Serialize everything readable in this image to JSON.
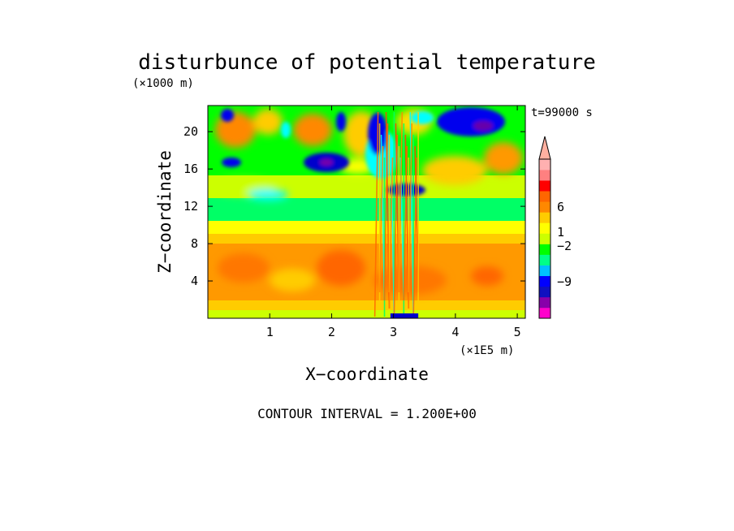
{
  "chart_data": {
    "type": "heatmap",
    "title": "disturbunce of potential temperature",
    "xlabel": "X−coordinate",
    "ylabel": "Z−coordinate",
    "x_unit": "(×1E5 m)",
    "y_unit": "(×1000 m)",
    "time_label": "t=99000 s",
    "footer": "CONTOUR INTERVAL = 1.200E+00",
    "x_ticks": [
      1,
      2,
      3,
      4,
      5
    ],
    "y_ticks": [
      4,
      8,
      12,
      16,
      20
    ],
    "xlim": [
      0,
      5.13
    ],
    "ylim": [
      0,
      22.8
    ],
    "contour_interval": 1.2,
    "colorbar": {
      "labels": [
        "6",
        "1",
        "−2",
        "−9"
      ],
      "label_values": [
        6,
        1,
        -2,
        -9
      ],
      "colors": [
        "#ff00cc",
        "#8800aa",
        "#1010c0",
        "#0000ff",
        "#00c0ff",
        "#00ff88",
        "#00ff00",
        "#ccff00",
        "#ffff00",
        "#ffcc00",
        "#ff8800",
        "#ff6600",
        "#ff0000",
        "#ff8080",
        "#ffb0b0"
      ],
      "extend": "max"
    }
  }
}
